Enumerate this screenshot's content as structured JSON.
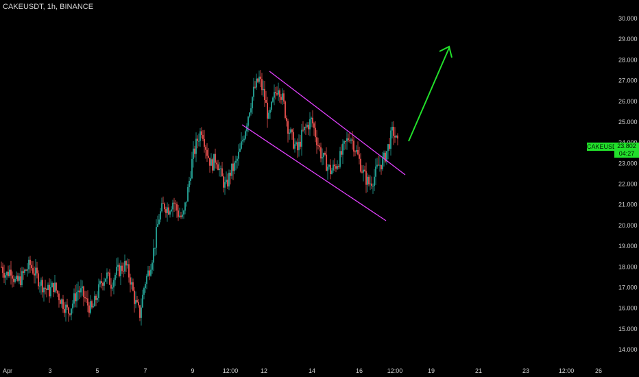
{
  "header": {
    "title": "CAKEUSDT, 1h, BINANCE"
  },
  "badge": {
    "symbol": "CAKEUSDT",
    "price": "23.802",
    "countdown": "04:27"
  },
  "colors": {
    "background": "#000000",
    "candle_up": "#26a69a",
    "candle_down": "#ef5350",
    "channel": "#e040fb",
    "arrow": "#22e02b",
    "badge": "#22e02b"
  },
  "chart_data": {
    "type": "candlestick",
    "y_ticks": [
      "14.000",
      "15.000",
      "16.000",
      "17.000",
      "18.000",
      "19.000",
      "20.000",
      "21.000",
      "22.000",
      "23.000",
      "24.000",
      "25.000",
      "26.000",
      "27.000",
      "28.000",
      "29.000",
      "30.000"
    ],
    "ylim": [
      13.4,
      30.5
    ],
    "x_ticks": [
      "Apr",
      "3",
      "5",
      "7",
      "9",
      "12:00",
      "12",
      "14",
      "16",
      "12:00",
      "19",
      "21",
      "23",
      "12:00",
      "26"
    ],
    "close_approx": [
      18.0,
      17.6,
      17.9,
      17.2,
      17.4,
      17.8,
      18.1,
      17.7,
      17.3,
      17.0,
      16.8,
      17.1,
      16.6,
      16.2,
      15.8,
      16.3,
      16.9,
      16.7,
      16.2,
      15.9,
      16.6,
      17.3,
      17.6,
      17.2,
      17.7,
      17.9,
      18.1,
      17.4,
      16.3,
      15.7,
      17.2,
      17.9,
      18.9,
      20.4,
      21.0,
      20.8,
      21.2,
      20.6,
      20.3,
      21.6,
      23.2,
      24.1,
      24.7,
      23.6,
      22.9,
      23.3,
      22.4,
      21.8,
      22.6,
      22.9,
      23.6,
      24.6,
      25.7,
      26.6,
      27.1,
      26.3,
      25.1,
      26.1,
      26.8,
      26.0,
      24.8,
      24.1,
      23.6,
      24.4,
      24.8,
      25.1,
      24.2,
      23.4,
      23.0,
      22.6,
      22.9,
      23.3,
      23.9,
      24.4,
      23.8,
      23.1,
      22.4,
      22.0,
      22.3,
      22.9,
      23.1,
      23.8,
      24.6,
      23.9
    ],
    "channel_upper": [
      [
        27.3,
        "start"
      ],
      [
        22.6,
        "end"
      ]
    ],
    "channel_lower": [
      [
        24.9,
        "start"
      ],
      [
        20.2,
        "end"
      ]
    ],
    "arrow_target": 28.7
  }
}
